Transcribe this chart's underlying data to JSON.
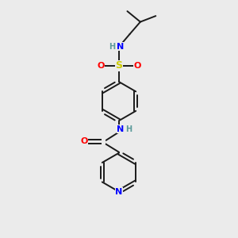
{
  "background_color": "#ebebeb",
  "bond_color": "#1a1a1a",
  "nitrogen_color": "#0000ff",
  "oxygen_color": "#ff0000",
  "sulfur_color": "#cccc00",
  "hydrogen_color": "#5a9a9a",
  "figsize": [
    3.0,
    3.0
  ],
  "dpi": 100,
  "xlim": [
    0,
    10
  ],
  "ylim": [
    0,
    10
  ]
}
